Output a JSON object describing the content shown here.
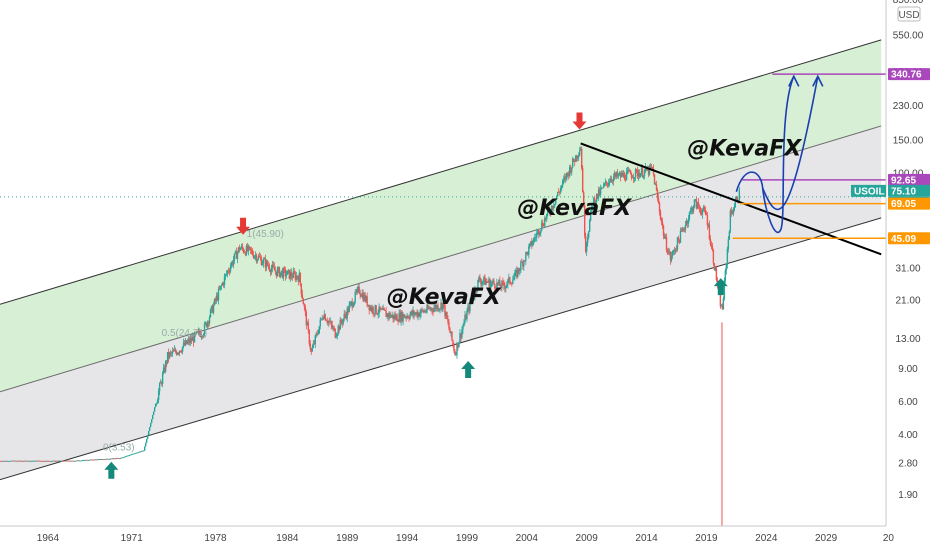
{
  "chart_data": {
    "type": "candlestick",
    "symbol": "USOIL",
    "currency": "USD",
    "y_scale": "log",
    "ylim": [
      1.3,
      850
    ],
    "xlim": [
      1960,
      2034
    ],
    "x_ticks": [
      "1964",
      "1971",
      "1978",
      "1984",
      "1989",
      "1994",
      "1999",
      "2004",
      "2009",
      "2014",
      "2019",
      "2024",
      "2029",
      "20"
    ],
    "y_ticks": [
      "850.00",
      "550.00",
      "350.00",
      "230.00",
      "150.00",
      "100.00",
      "69.05",
      "45.09",
      "31.00",
      "21.00",
      "13.00",
      "9.00",
      "6.00",
      "4.00",
      "2.80",
      "1.90"
    ],
    "series": [
      {
        "x": [
          1960,
          1962,
          1964,
          1966,
          1968,
          1970,
          1972,
          1974,
          1975,
          1977,
          1979,
          1980,
          1981,
          1983,
          1985,
          1986,
          1987,
          1988,
          1990,
          1991,
          1993,
          1995,
          1997,
          1998,
          1999,
          2000,
          2002,
          2003,
          2005,
          2006,
          2008.5,
          2008.9,
          2009.5,
          2011,
          2013,
          2014.5,
          2015.5,
          2016,
          2018,
          2019,
          2020.3,
          2021,
          2021.8
        ],
        "y": [
          2.9,
          2.9,
          2.9,
          2.9,
          2.95,
          3.0,
          3.3,
          10.5,
          11.5,
          14.5,
          30,
          40,
          38,
          30,
          28,
          11,
          18,
          14,
          24,
          19,
          17,
          18,
          20,
          11,
          18,
          27,
          25,
          28,
          50,
          65,
          140,
          40,
          70,
          95,
          100,
          105,
          45,
          35,
          70,
          60,
          18,
          60,
          80
        ]
      }
    ],
    "price_labels": [
      {
        "text": "340.76",
        "value": 340.76,
        "color": "#ab47bc"
      },
      {
        "text": "92.65",
        "value": 92.65,
        "color": "#ab47bc"
      },
      {
        "text": "USOIL",
        "value": 75.1,
        "color": "#26a69a"
      },
      {
        "text": "75.10",
        "value": 75.1,
        "color": "#26a69a"
      },
      {
        "text": "27d 12h",
        "value": 75.1,
        "color": "#26a69a"
      },
      {
        "text": "69.05",
        "value": 69.05,
        "color": "#ff9800"
      },
      {
        "text": "45.09",
        "value": 45.09,
        "color": "#ff9800"
      }
    ],
    "fib_labels": [
      {
        "text": "1(45.90)",
        "x": 1980.6,
        "value": 45.9
      },
      {
        "text": "0.5(24.71)",
        "x": 1973.5,
        "value": 13.5
      },
      {
        "text": "0(3.53)",
        "x": 1968.6,
        "value": 3.3
      }
    ],
    "watermarks": [
      {
        "text": "@KevaFX",
        "x": 1992.3,
        "value": 20
      },
      {
        "text": "@KevaFX",
        "x": 2003.2,
        "value": 60
      },
      {
        "text": "@KevaFX",
        "x": 2017.4,
        "value": 125
      }
    ],
    "arrows": [
      {
        "direction": "up",
        "x": 1969.3,
        "value": 2.6,
        "color": "#14887a"
      },
      {
        "direction": "down",
        "x": 1980.3,
        "value": 52,
        "color": "#e53935"
      },
      {
        "direction": "up",
        "x": 1999.1,
        "value": 9.0,
        "color": "#14887a"
      },
      {
        "direction": "down",
        "x": 2008.4,
        "value": 190,
        "color": "#e53935"
      },
      {
        "direction": "up",
        "x": 2020.2,
        "value": 25,
        "color": "#14887a"
      }
    ],
    "channel": {
      "upper": {
        "x": [
          1960,
          2033.6
        ],
        "y": [
          20,
          520
        ]
      },
      "mid": {
        "x": [
          1960,
          2033.6
        ],
        "y": [
          6.8,
          180
        ]
      },
      "lower": {
        "x": [
          1960,
          2033.6
        ],
        "y": [
          2.3,
          58
        ]
      }
    },
    "trendline": {
      "x": [
        2008.5,
        2033.6
      ],
      "y": [
        145,
        37
      ]
    },
    "projection": {
      "x": [
        2021.5,
        2022.7,
        2024,
        2025.2,
        2026.8
      ],
      "y": [
        80,
        90,
        70,
        50,
        340
      ]
    },
    "colors": {
      "up_candle": "#26a69a",
      "down_candle": "#ef5350",
      "upper_zone": "#c9e9c6",
      "lower_zone": "#e6e6e9",
      "channel_line": "#333333",
      "projection": "#1a3fb0",
      "purple": "#ab47bc",
      "orange": "#ff9800"
    }
  }
}
